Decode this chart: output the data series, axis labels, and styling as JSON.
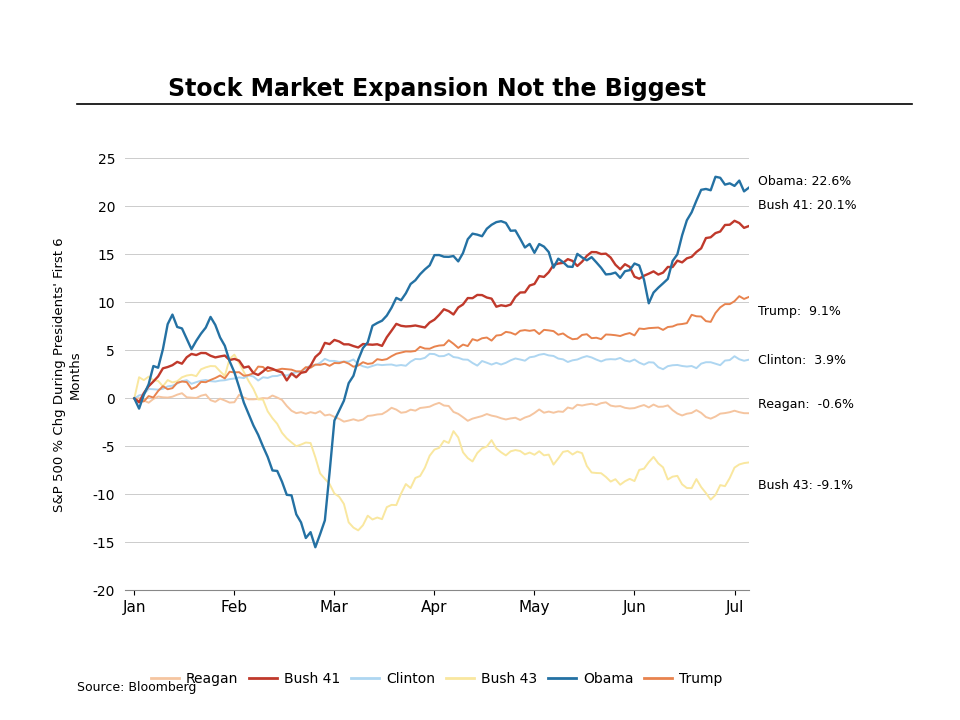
{
  "title": "Stock Market Expansion Not the Biggest",
  "ylabel": "S&P 500 % Chg During Presidents’ First 6\nMonths",
  "source": "Source: Bloomberg",
  "xlabels": [
    "Jan",
    "Feb",
    "Mar",
    "Apr",
    "May",
    "Jun",
    "Jul"
  ],
  "ylim": [
    -20,
    25
  ],
  "yticks": [
    -20,
    -15,
    -10,
    -5,
    0,
    5,
    10,
    15,
    20,
    25
  ],
  "colors": {
    "Reagan": "#F5C5A0",
    "Bush41": "#C0392B",
    "Clinton": "#AED6F1",
    "Bush43": "#F9E79F",
    "Obama": "#2471A3",
    "Trump": "#E8834E"
  },
  "labels": {
    "Reagan": "Reagan:  -0.6%",
    "Bush41": "Bush 41: 20.1%",
    "Clinton": "Clinton:  3.9%",
    "Bush43": "Bush 43: -9.1%",
    "Obama": "Obama: 22.6%",
    "Trump": "Trump:  9.1%"
  },
  "legend_labels": [
    "Reagan",
    "Bush 41",
    "Clinton",
    "Bush 43",
    "Obama",
    "Trump"
  ],
  "n_points": 130
}
